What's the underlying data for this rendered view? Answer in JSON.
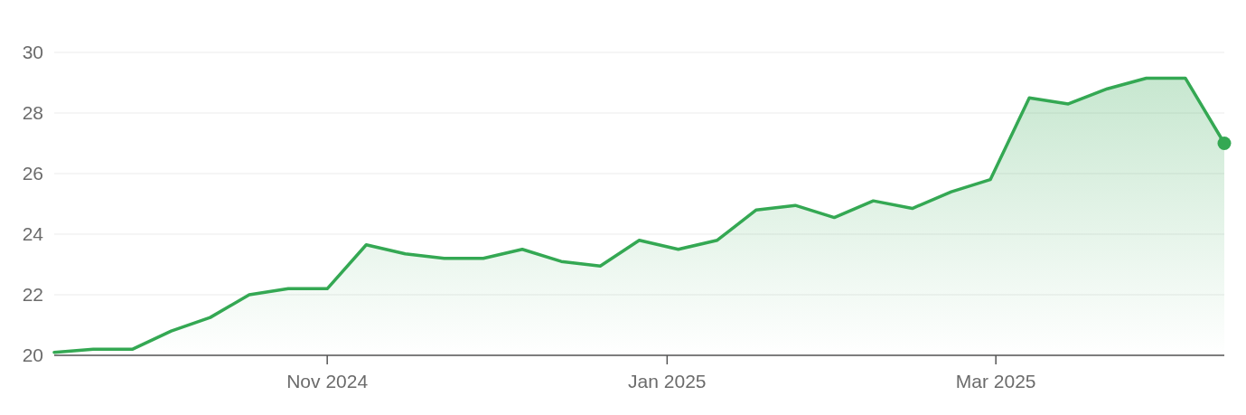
{
  "chart_data": {
    "type": "area",
    "x": [
      "2024-09-13",
      "2024-09-20",
      "2024-09-27",
      "2024-10-04",
      "2024-10-11",
      "2024-10-18",
      "2024-10-25",
      "2024-11-01",
      "2024-11-08",
      "2024-11-15",
      "2024-11-22",
      "2024-11-29",
      "2024-12-06",
      "2024-12-13",
      "2024-12-20",
      "2024-12-27",
      "2025-01-03",
      "2025-01-10",
      "2025-01-17",
      "2025-01-24",
      "2025-01-31",
      "2025-02-07",
      "2025-02-14",
      "2025-02-21",
      "2025-02-28",
      "2025-03-07",
      "2025-03-14",
      "2025-03-21",
      "2025-03-28",
      "2025-04-04",
      "2025-04-11"
    ],
    "series": [
      {
        "color": "#34a853",
        "values": [
          20.1,
          20.2,
          20.2,
          20.8,
          21.25,
          22.0,
          22.2,
          22.2,
          23.65,
          23.35,
          23.2,
          23.2,
          23.5,
          23.1,
          22.95,
          23.8,
          23.5,
          23.8,
          24.8,
          24.95,
          24.55,
          25.1,
          24.85,
          25.4,
          25.8,
          28.5,
          28.3,
          28.8,
          29.15,
          29.15,
          27.0
        ]
      },
      {
        "type": "scatter",
        "color": "#34a853",
        "marker": "circle",
        "x": [
          "2025-04-11"
        ],
        "values": [
          27.0
        ]
      }
    ],
    "xlim": [
      "2024-09-13",
      "2025-04-11"
    ],
    "xticks": [
      {
        "value": "2024-11-01",
        "label": "Nov 2024"
      },
      {
        "value": "2025-01-01",
        "label": "Jan 2025"
      },
      {
        "value": "2025-03-01",
        "label": "Mar 2025"
      }
    ],
    "ylim": [
      20,
      30
    ],
    "yticks": [
      20,
      22,
      24,
      26,
      28,
      30
    ],
    "grid": "y"
  }
}
